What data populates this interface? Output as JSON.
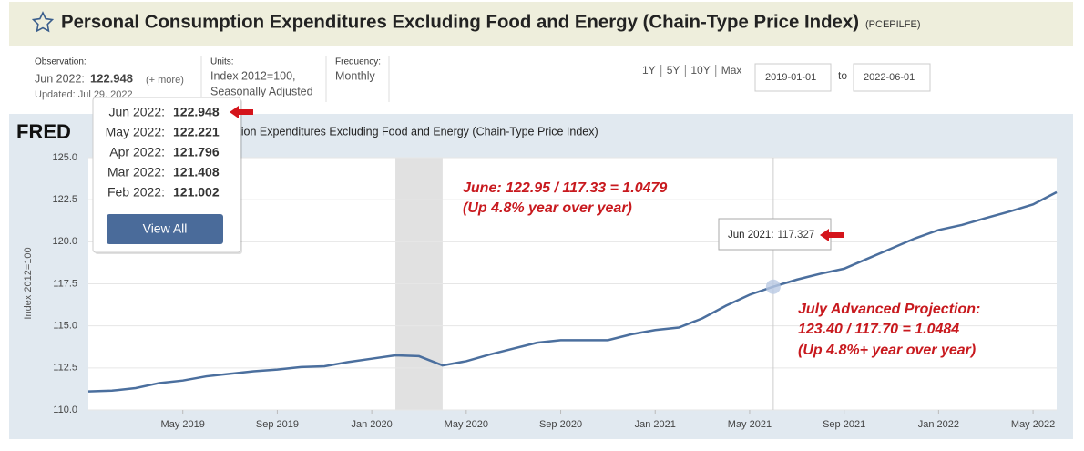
{
  "header": {
    "title": "Personal Consumption Expenditures Excluding Food and Energy (Chain-Type Price Index)",
    "series_id": "(PCEPILFE)"
  },
  "observation": {
    "label": "Observation:",
    "date": "Jun 2022:",
    "value": "122.948",
    "more": "(+ more)",
    "updated": "Updated: Jul 29, 2022"
  },
  "units": {
    "label": "Units:",
    "lines": [
      "Index 2012=100,",
      "Seasonally Adjusted"
    ]
  },
  "frequency": {
    "label": "Frequency:",
    "value": "Monthly"
  },
  "range": {
    "periods": [
      "1Y",
      "5Y",
      "10Y",
      "Max"
    ],
    "start": "2019-01-01",
    "to": "to",
    "end": "2022-06-01"
  },
  "popup": {
    "rows": [
      {
        "date": "Jun 2022:",
        "value": "122.948"
      },
      {
        "date": "May 2022:",
        "value": "122.221"
      },
      {
        "date": "Apr 2022:",
        "value": "121.796"
      },
      {
        "date": "Mar 2022:",
        "value": "121.408"
      },
      {
        "date": "Feb 2022:",
        "value": "121.002"
      }
    ],
    "button": "View All"
  },
  "chart_data": {
    "type": "line",
    "logo": "FRED",
    "title": "Personal Consumption Expenditures Excluding Food and Energy (Chain-Type Price Index)",
    "y_label": "Index 2012=100",
    "x": [
      "2019-01",
      "2019-02",
      "2019-03",
      "2019-04",
      "2019-05",
      "2019-06",
      "2019-07",
      "2019-08",
      "2019-09",
      "2019-10",
      "2019-11",
      "2019-12",
      "2020-01",
      "2020-02",
      "2020-03",
      "2020-04",
      "2020-05",
      "2020-06",
      "2020-07",
      "2020-08",
      "2020-09",
      "2020-10",
      "2020-11",
      "2020-12",
      "2021-01",
      "2021-02",
      "2021-03",
      "2021-04",
      "2021-05",
      "2021-06",
      "2021-07",
      "2021-08",
      "2021-09",
      "2021-10",
      "2021-11",
      "2021-12",
      "2022-01",
      "2022-02",
      "2022-03",
      "2022-04",
      "2022-05",
      "2022-06"
    ],
    "values": [
      111.1,
      111.15,
      111.3,
      111.6,
      111.75,
      112.0,
      112.15,
      112.3,
      112.4,
      112.55,
      112.6,
      112.85,
      113.05,
      113.25,
      113.2,
      112.65,
      112.9,
      113.3,
      113.65,
      114.0,
      114.15,
      114.15,
      114.15,
      114.5,
      114.75,
      114.9,
      115.45,
      116.2,
      116.85,
      117.327,
      117.75,
      118.1,
      118.4,
      119.0,
      119.6,
      120.2,
      120.7,
      121.002,
      121.408,
      121.796,
      122.221,
      122.948
    ],
    "color": "#4b6f9e",
    "xlim": [
      "2019-01",
      "2022-06"
    ],
    "xticks": [
      {
        "value": "2019-05",
        "label": "May 2019"
      },
      {
        "value": "2019-09",
        "label": "Sep 2019"
      },
      {
        "value": "2020-01",
        "label": "Jan 2020"
      },
      {
        "value": "2020-05",
        "label": "May 2020"
      },
      {
        "value": "2020-09",
        "label": "Sep 2020"
      },
      {
        "value": "2021-01",
        "label": "Jan 2021"
      },
      {
        "value": "2021-05",
        "label": "May 2021"
      },
      {
        "value": "2021-09",
        "label": "Sep 2021"
      },
      {
        "value": "2022-01",
        "label": "Jan 2022"
      },
      {
        "value": "2022-05",
        "label": "May 2022"
      }
    ],
    "ylim": [
      110,
      125
    ],
    "yticks": [
      {
        "value": 110,
        "label": "110.0"
      },
      {
        "value": 112.5,
        "label": "112.5"
      },
      {
        "value": 115,
        "label": "115.0"
      },
      {
        "value": 117.5,
        "label": "117.5"
      },
      {
        "value": 120,
        "label": "120.0"
      },
      {
        "value": 122.5,
        "label": "122.5"
      },
      {
        "value": 125,
        "label": "125.0"
      }
    ],
    "grid": true,
    "shaded": {
      "from": "2020-02",
      "to": "2020-04"
    },
    "tooltip": {
      "x": "2021-06",
      "date": "Jun 2021:",
      "value": "117.327"
    }
  },
  "annotations": [
    "June: 122.95 / 117.33 = 1.0479",
    "(Up 4.8% year over year)",
    "July Advanced Projection:",
    "123.40 / 117.70 = 1.0484",
    "(Up 4.8%+ year over year)"
  ]
}
